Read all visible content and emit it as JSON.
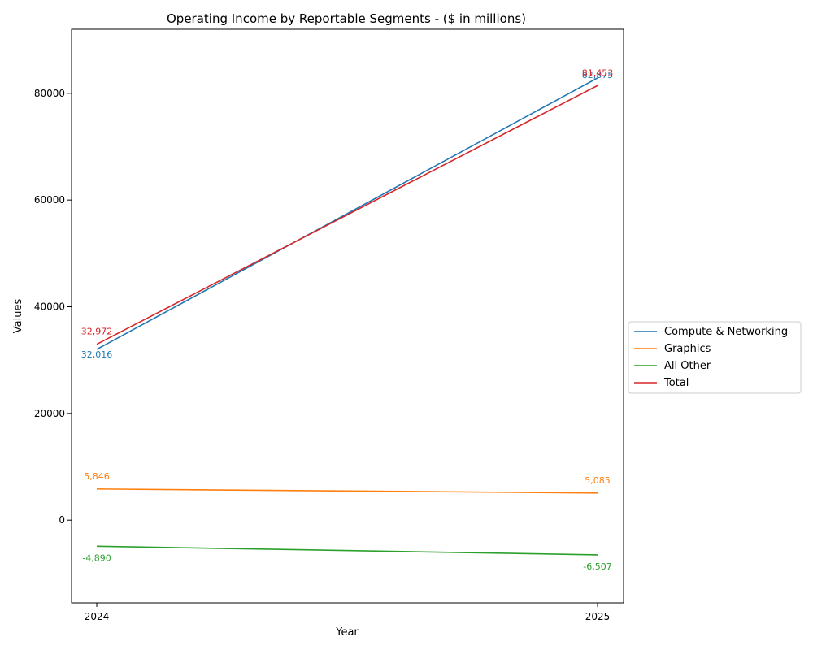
{
  "chart_data": {
    "type": "line",
    "title": "Operating Income by Reportable Segments - ($ in millions)",
    "xlabel": "Year",
    "ylabel": "Values",
    "categories": [
      "2024",
      "2025"
    ],
    "ylim": [
      -15500,
      92000
    ],
    "y_ticks": [
      0,
      20000,
      40000,
      60000,
      80000
    ],
    "y_tick_labels": [
      "0",
      "20000",
      "40000",
      "60000",
      "80000"
    ],
    "grid": false,
    "legend_position": "right",
    "series": [
      {
        "name": "Compute & Networking",
        "color": "#1f77b4",
        "values": [
          32016,
          82875
        ],
        "labels": [
          "32,016",
          "82,875"
        ]
      },
      {
        "name": "Graphics",
        "color": "#ff7f0e",
        "values": [
          5846,
          5085
        ],
        "labels": [
          "5,846",
          "5,085"
        ]
      },
      {
        "name": "All Other",
        "color": "#2ca02c",
        "values": [
          -4890,
          -6507
        ],
        "labels": [
          "-4,890",
          "-6,507"
        ]
      },
      {
        "name": "Total",
        "color": "#d62728",
        "values": [
          32972,
          81453
        ],
        "labels": [
          "32,972",
          "81,453"
        ]
      }
    ]
  }
}
